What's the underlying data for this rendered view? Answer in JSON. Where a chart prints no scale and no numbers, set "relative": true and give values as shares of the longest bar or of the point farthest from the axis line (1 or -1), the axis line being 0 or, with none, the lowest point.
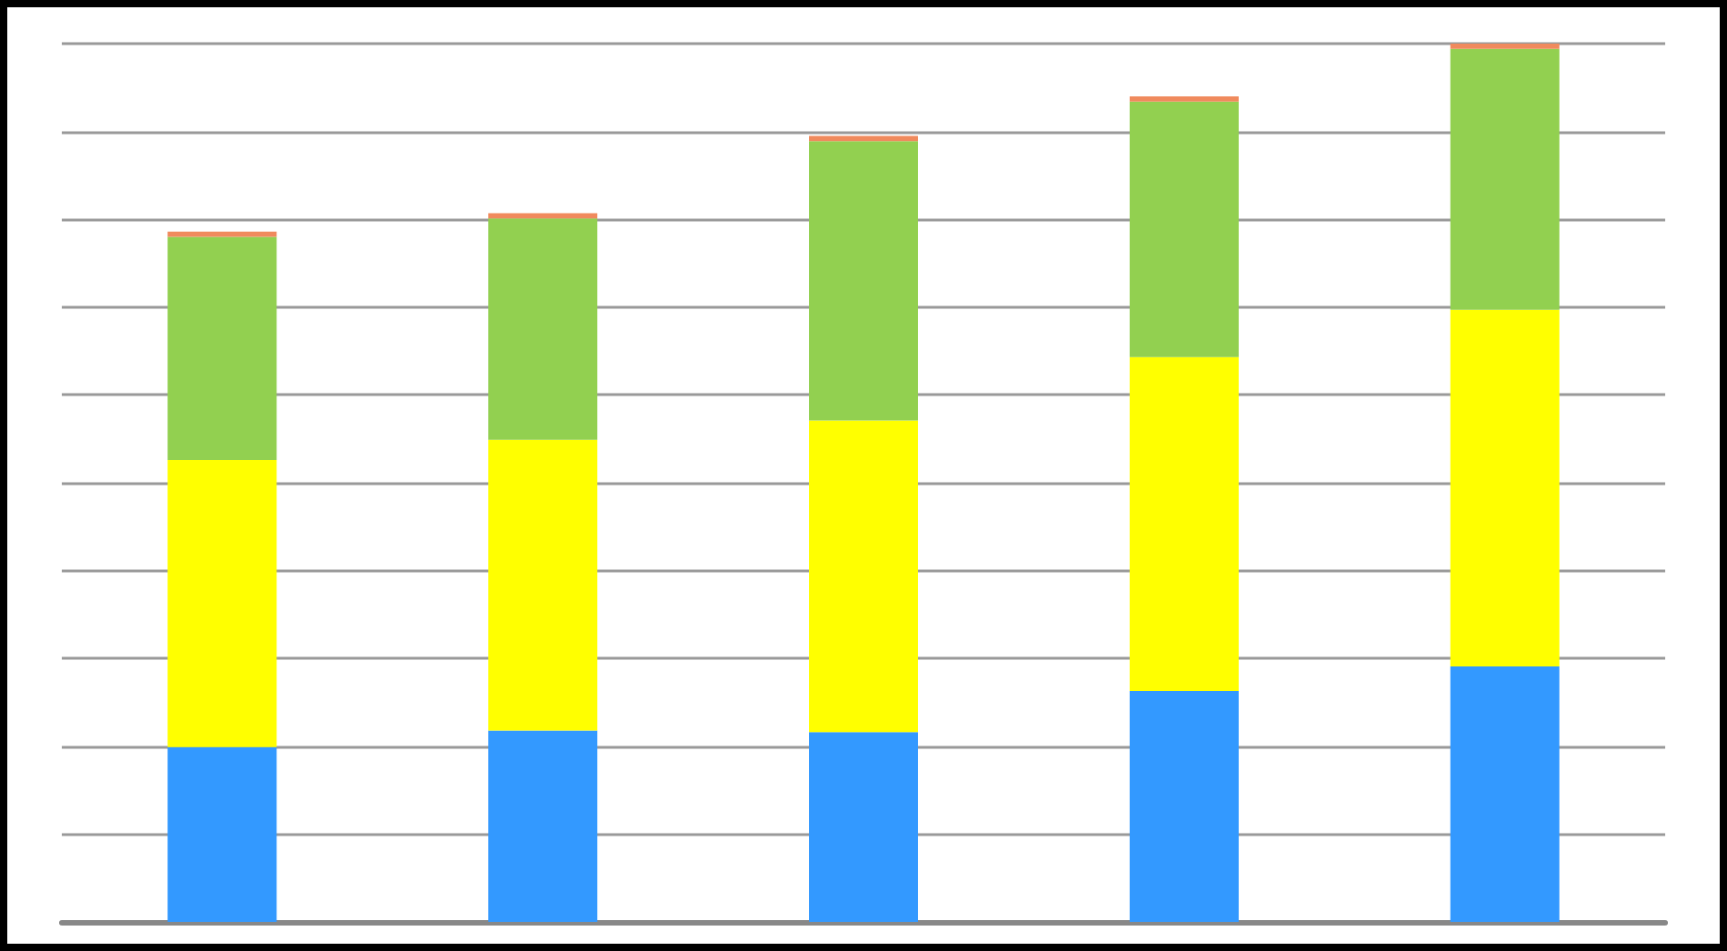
{
  "chart_data": {
    "type": "bar",
    "stacked": true,
    "relative": true,
    "grid": "y",
    "categories": [
      null,
      null,
      null,
      null,
      null
    ],
    "series": [
      {
        "color": "#3399ff",
        "values": [
          0.199,
          0.218,
          0.216,
          0.263,
          0.291
        ]
      },
      {
        "color": "#ffff00",
        "values": [
          0.327,
          0.331,
          0.355,
          0.38,
          0.406
        ]
      },
      {
        "color": "#92d050",
        "values": [
          0.254,
          0.252,
          0.318,
          0.291,
          0.297
        ]
      },
      {
        "color": "#f08a5d",
        "values": [
          0.006,
          0.006,
          0.006,
          0.006,
          0.006
        ]
      }
    ]
  }
}
